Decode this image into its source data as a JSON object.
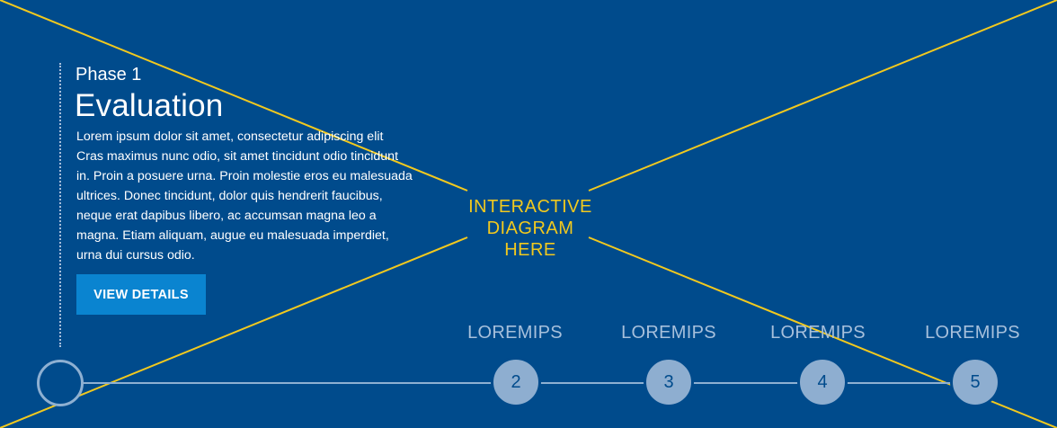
{
  "phase": {
    "label": "Phase 1",
    "title": "Evaluation",
    "body": "Lorem ipsum dolor sit amet, consectetur adipiscing elit Cras maximus nunc odio, sit amet tincidunt odio tincidunt in. Proin a posuere urna. Proin molestie eros eu malesuada ultrices. Donec tincidunt, dolor quis hendrerit faucibus, neque erat dapibus libero, ac accumsan magna leo a magna. Etiam aliquam, augue eu malesuada imperdiet, urna dui cursus odio.",
    "details_button": "VIEW DETAILS"
  },
  "diagram_placeholder": {
    "line1": "INTERACTIVE",
    "line2": "DIAGRAM",
    "line3": "HERE"
  },
  "timeline": {
    "steps": [
      {
        "number": "2",
        "title": "LOREMIPS"
      },
      {
        "number": "3",
        "title": "LOREMIPS"
      },
      {
        "number": "4",
        "title": "LOREMIPS"
      },
      {
        "number": "5",
        "title": "LOREMIPS"
      }
    ]
  },
  "colors": {
    "background": "#004b8c",
    "accent_button": "#0a84d0",
    "placeholder_yellow": "#f2c91e",
    "step_fill": "#8eaed0",
    "step_title": "#a7c0dc"
  }
}
